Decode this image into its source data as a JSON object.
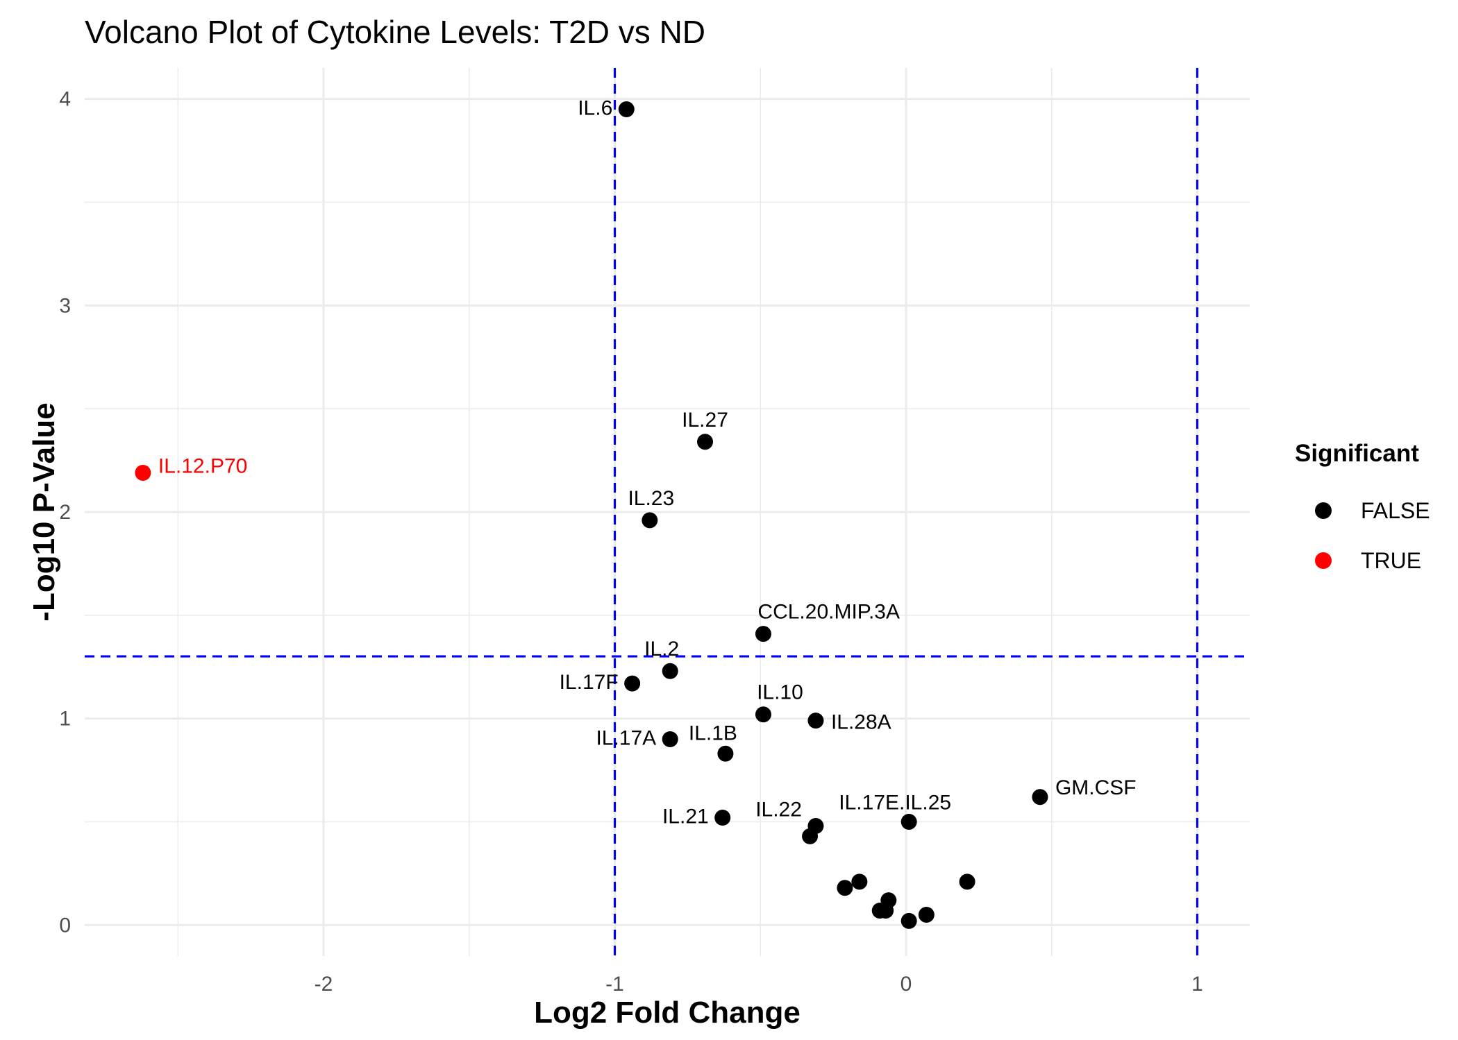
{
  "chart_data": {
    "type": "scatter",
    "title": "Volcano Plot of Cytokine Levels: T2D vs ND",
    "xlabel": "Log2 Fold Change",
    "ylabel": "-Log10 P-Value",
    "xlim": [
      -2.82,
      1.18
    ],
    "ylim": [
      -0.15,
      4.15
    ],
    "x_ticks": [
      -2,
      -1,
      0,
      1
    ],
    "y_ticks": [
      0,
      1,
      2,
      3,
      4
    ],
    "grid": true,
    "threshold_lines": {
      "vertical": [
        -1,
        1
      ],
      "horizontal": [
        1.301
      ],
      "color": "#0000ff",
      "style": "dashed"
    },
    "legend": {
      "title": "Significant",
      "placement": "right",
      "entries": [
        {
          "label": "FALSE",
          "color": "#000000"
        },
        {
          "label": "TRUE",
          "color": "#ff0000"
        }
      ]
    },
    "points": [
      {
        "label": "IL.6",
        "x": -0.96,
        "y": 3.95,
        "significant": "FALSE"
      },
      {
        "label": "IL.27",
        "x": -0.69,
        "y": 2.34,
        "significant": "FALSE"
      },
      {
        "label": "IL.12.P70",
        "x": -2.62,
        "y": 2.19,
        "significant": "TRUE"
      },
      {
        "label": "IL.23",
        "x": -0.88,
        "y": 1.96,
        "significant": "FALSE"
      },
      {
        "label": "CCL.20.MIP.3A",
        "x": -0.49,
        "y": 1.41,
        "significant": "FALSE"
      },
      {
        "label": "IL.2",
        "x": -0.81,
        "y": 1.23,
        "significant": "FALSE"
      },
      {
        "label": "IL.17F",
        "x": -0.94,
        "y": 1.17,
        "significant": "FALSE"
      },
      {
        "label": "IL.10",
        "x": -0.49,
        "y": 1.02,
        "significant": "FALSE"
      },
      {
        "label": "IL.28A",
        "x": -0.31,
        "y": 0.99,
        "significant": "FALSE"
      },
      {
        "label": "IL.17A",
        "x": -0.81,
        "y": 0.9,
        "significant": "FALSE"
      },
      {
        "label": "IL.1B",
        "x": -0.62,
        "y": 0.83,
        "significant": "FALSE"
      },
      {
        "label": "GM.CSF",
        "x": 0.46,
        "y": 0.62,
        "significant": "FALSE"
      },
      {
        "label": "IL.17E.IL.25",
        "x": 0.01,
        "y": 0.5,
        "significant": "FALSE"
      },
      {
        "label": "IL.21",
        "x": -0.63,
        "y": 0.52,
        "significant": "FALSE"
      },
      {
        "label": "IL.22",
        "x": -0.31,
        "y": 0.48,
        "significant": "FALSE"
      },
      {
        "label": "",
        "x": -0.33,
        "y": 0.43,
        "significant": "FALSE"
      },
      {
        "label": "",
        "x": -0.21,
        "y": 0.18,
        "significant": "FALSE"
      },
      {
        "label": "",
        "x": -0.16,
        "y": 0.21,
        "significant": "FALSE"
      },
      {
        "label": "",
        "x": 0.21,
        "y": 0.21,
        "significant": "FALSE"
      },
      {
        "label": "",
        "x": -0.06,
        "y": 0.12,
        "significant": "FALSE"
      },
      {
        "label": "",
        "x": -0.09,
        "y": 0.07,
        "significant": "FALSE"
      },
      {
        "label": "",
        "x": -0.07,
        "y": 0.07,
        "significant": "FALSE"
      },
      {
        "label": "",
        "x": 0.07,
        "y": 0.05,
        "significant": "FALSE"
      },
      {
        "label": "",
        "x": 0.01,
        "y": 0.02,
        "significant": "FALSE"
      }
    ]
  }
}
